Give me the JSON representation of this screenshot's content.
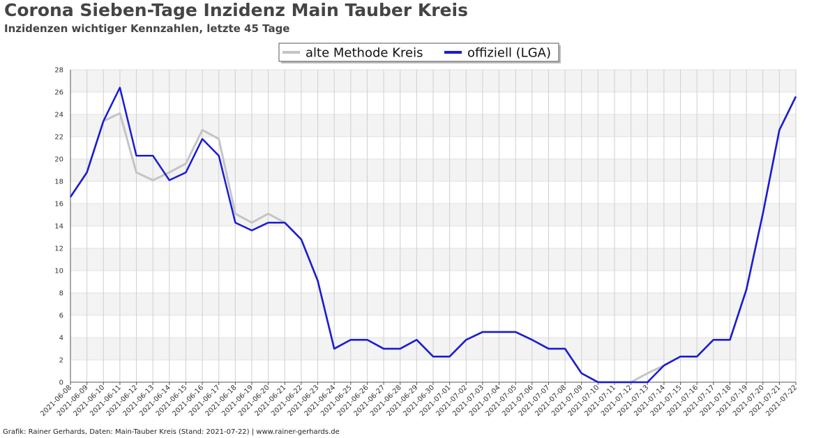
{
  "title": "Corona Sieben-Tage Inzidenz Main Tauber Kreis",
  "subtitle": "Inzidenzen wichtiger Kennzahlen, letzte 45 Tage",
  "footer": "Grafik: Rainer Gerhards, Daten: Main-Tauber Kreis (Stand: 2021-07-22) | www.rainer-gerhards.de",
  "chart_data": {
    "type": "line",
    "legend_position": "top-center",
    "grid": true,
    "ylim": [
      0,
      28
    ],
    "yticks": [
      0,
      2,
      4,
      6,
      8,
      10,
      12,
      14,
      16,
      18,
      20,
      22,
      24,
      26,
      28
    ],
    "x": [
      "2021-06-08",
      "2021-06-09",
      "2021-06-10",
      "2021-06-11",
      "2021-06-12",
      "2021-06-13",
      "2021-06-14",
      "2021-06-15",
      "2021-06-16",
      "2021-06-17",
      "2021-06-18",
      "2021-06-19",
      "2021-06-20",
      "2021-06-21",
      "2021-06-22",
      "2021-06-23",
      "2021-06-24",
      "2021-06-25",
      "2021-06-26",
      "2021-06-27",
      "2021-06-28",
      "2021-06-29",
      "2021-06-30",
      "2021-07-01",
      "2021-07-02",
      "2021-07-03",
      "2021-07-04",
      "2021-07-05",
      "2021-07-06",
      "2021-07-07",
      "2021-07-08",
      "2021-07-09",
      "2021-07-10",
      "2021-07-11",
      "2021-07-12",
      "2021-07-13",
      "2021-07-14",
      "2021-07-15",
      "2021-07-16",
      "2021-07-17",
      "2021-07-18",
      "2021-07-19",
      "2021-07-20",
      "2021-07-21",
      "2021-07-22"
    ],
    "series": [
      {
        "name": "alte Methode Kreis",
        "color": "#c4c4c4",
        "values": [
          16.6,
          18.8,
          23.4,
          24.1,
          18.8,
          18.1,
          18.8,
          19.6,
          22.6,
          21.8,
          15.1,
          14.3,
          15.1,
          14.3,
          12.8,
          9.1,
          3.0,
          3.8,
          3.8,
          3.0,
          3.0,
          3.8,
          2.3,
          2.3,
          3.8,
          4.5,
          4.5,
          4.5,
          3.8,
          3.0,
          3.0,
          0.8,
          0.0,
          0.0,
          0.0,
          0.8,
          1.5,
          2.3,
          2.3,
          3.8,
          3.8,
          8.3,
          15.1,
          22.6,
          25.6
        ]
      },
      {
        "name": "offiziell (LGA)",
        "color": "#1a1ad6",
        "values": [
          16.6,
          18.8,
          23.4,
          26.4,
          20.3,
          20.3,
          18.1,
          18.8,
          21.8,
          20.3,
          14.3,
          13.6,
          14.3,
          14.3,
          12.8,
          9.1,
          3.0,
          3.8,
          3.8,
          3.0,
          3.0,
          3.8,
          2.3,
          2.3,
          3.8,
          4.5,
          4.5,
          4.5,
          3.8,
          3.0,
          3.0,
          0.8,
          0.0,
          0.0,
          0.0,
          0.0,
          1.5,
          2.3,
          2.3,
          3.8,
          3.8,
          8.3,
          15.1,
          22.6,
          25.6
        ]
      }
    ]
  }
}
